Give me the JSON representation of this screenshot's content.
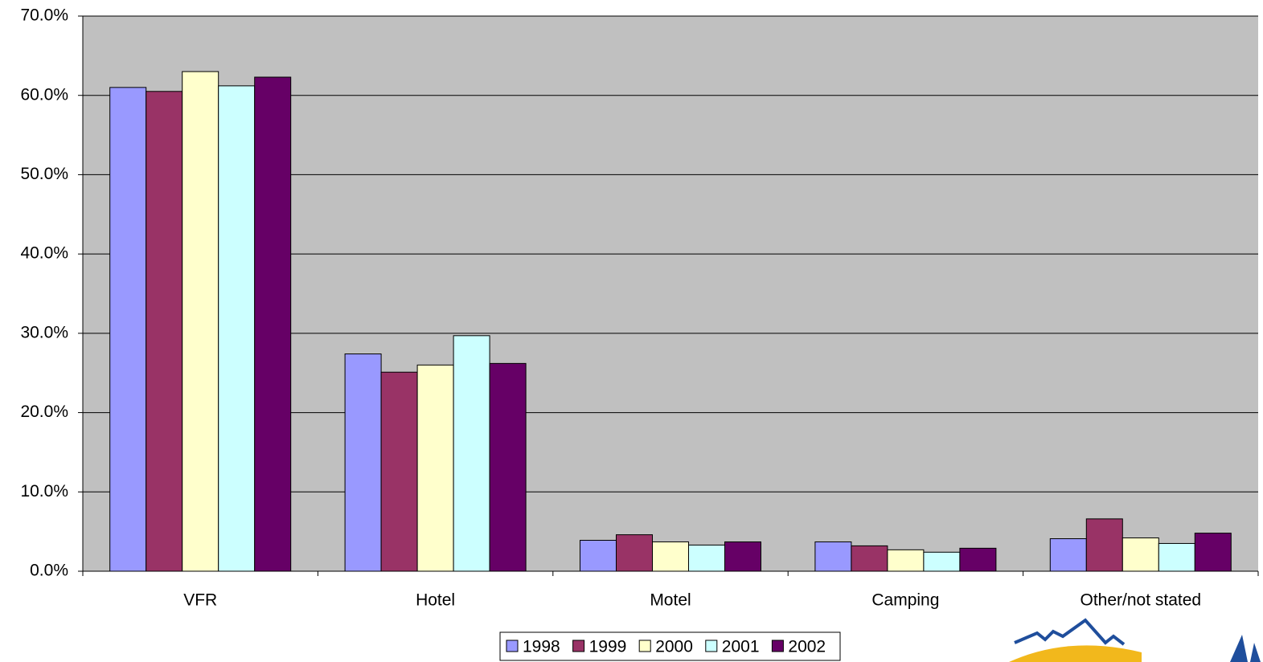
{
  "chart_data": {
    "type": "bar",
    "categories": [
      "VFR",
      "Hotel",
      "Motel",
      "Camping",
      "Other/not stated"
    ],
    "series": [
      {
        "name": "1998",
        "color": "#9999ff",
        "values": [
          61.0,
          27.4,
          3.9,
          3.7,
          4.1
        ]
      },
      {
        "name": "1999",
        "color": "#993366",
        "values": [
          60.5,
          25.1,
          4.6,
          3.2,
          6.6
        ]
      },
      {
        "name": "2000",
        "color": "#ffffcc",
        "values": [
          63.0,
          26.0,
          3.7,
          2.7,
          4.2
        ]
      },
      {
        "name": "2001",
        "color": "#ccffff",
        "values": [
          61.2,
          29.7,
          3.3,
          2.4,
          3.5
        ]
      },
      {
        "name": "2002",
        "color": "#660066",
        "values": [
          62.3,
          26.2,
          3.7,
          2.9,
          4.8
        ]
      }
    ],
    "ylim": [
      0,
      70
    ],
    "yticks": [
      {
        "value": 0,
        "label": "0.0%"
      },
      {
        "value": 10,
        "label": "10.0%"
      },
      {
        "value": 20,
        "label": "20.0%"
      },
      {
        "value": 30,
        "label": "30.0%"
      },
      {
        "value": 40,
        "label": "40.0%"
      },
      {
        "value": 50,
        "label": "50.0%"
      },
      {
        "value": 60,
        "label": "60.0%"
      },
      {
        "value": 70,
        "label": "70.0%"
      }
    ],
    "grid": true,
    "plot_background": "#c0c0c0",
    "legend": "bottom"
  }
}
